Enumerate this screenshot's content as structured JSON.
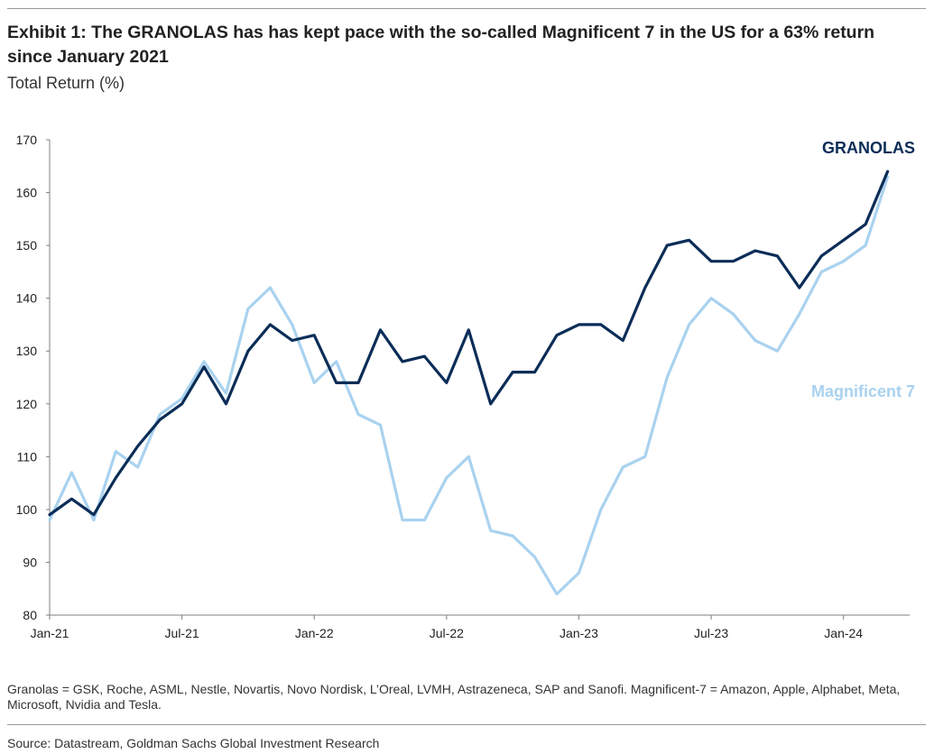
{
  "header": {
    "title": "Exhibit 1: The GRANOLAS has has kept pace with the so-called Magnificent 7 in the US for a 63% return since January 2021",
    "subtitle": "Total Return (%)"
  },
  "footer": {
    "note": "Granolas = GSK, Roche, ASML, Nestle, Novartis, Novo Nordisk, L’Oreal, LVMH, Astrazeneca, SAP and Sanofi. Magnificent-7 = Amazon, Apple, Alphabet, Meta, Microsoft, Nvidia and Tesla.",
    "source": "Source: Datastream, Goldman Sachs Global Investment Research"
  },
  "chart_data": {
    "type": "line",
    "title": "",
    "xlabel": "",
    "ylabel": "",
    "x_tick_labels": [
      "Jan-21",
      "Jul-21",
      "Jan-22",
      "Jul-22",
      "Jan-23",
      "Jul-23",
      "Jan-24"
    ],
    "y_ticks": [
      80,
      90,
      100,
      110,
      120,
      130,
      140,
      150,
      160,
      170
    ],
    "ylim": [
      80,
      170
    ],
    "xlim": [
      "2021-01",
      "2024-04"
    ],
    "grid": false,
    "legend": "direct labels at line ends",
    "series": [
      {
        "name": "GRANOLAS",
        "color": "#0b2d57",
        "x": [
          "2021-01",
          "2021-02",
          "2021-03",
          "2021-04",
          "2021-05",
          "2021-06",
          "2021-07",
          "2021-08",
          "2021-09",
          "2021-10",
          "2021-11",
          "2021-12",
          "2022-01",
          "2022-02",
          "2022-03",
          "2022-04",
          "2022-05",
          "2022-06",
          "2022-07",
          "2022-08",
          "2022-09",
          "2022-10",
          "2022-11",
          "2022-12",
          "2023-01",
          "2023-02",
          "2023-03",
          "2023-04",
          "2023-05",
          "2023-06",
          "2023-07",
          "2023-08",
          "2023-09",
          "2023-10",
          "2023-11",
          "2023-12",
          "2024-01",
          "2024-02",
          "2024-03"
        ],
        "values": [
          99,
          102,
          99,
          106,
          112,
          117,
          120,
          127,
          120,
          130,
          135,
          132,
          133,
          124,
          124,
          134,
          128,
          129,
          124,
          134,
          120,
          126,
          126,
          133,
          135,
          135,
          132,
          142,
          150,
          151,
          147,
          147,
          149,
          148,
          142,
          148,
          151,
          154,
          164
        ]
      },
      {
        "name": "Magnificent 7",
        "color": "#a9d2ef",
        "x": [
          "2021-01",
          "2021-02",
          "2021-03",
          "2021-04",
          "2021-05",
          "2021-06",
          "2021-07",
          "2021-08",
          "2021-09",
          "2021-10",
          "2021-11",
          "2021-12",
          "2022-01",
          "2022-02",
          "2022-03",
          "2022-04",
          "2022-05",
          "2022-06",
          "2022-07",
          "2022-08",
          "2022-09",
          "2022-10",
          "2022-11",
          "2022-12",
          "2023-01",
          "2023-02",
          "2023-03",
          "2023-04",
          "2023-05",
          "2023-06",
          "2023-07",
          "2023-08",
          "2023-09",
          "2023-10",
          "2023-11",
          "2023-12",
          "2024-01",
          "2024-02",
          "2024-03"
        ],
        "values": [
          98,
          107,
          98,
          111,
          108,
          118,
          121,
          128,
          122,
          138,
          142,
          135,
          124,
          128,
          118,
          116,
          98,
          98,
          106,
          110,
          96,
          95,
          91,
          84,
          88,
          100,
          108,
          110,
          125,
          135,
          140,
          137,
          132,
          130,
          137,
          145,
          147,
          150,
          163
        ]
      }
    ]
  }
}
